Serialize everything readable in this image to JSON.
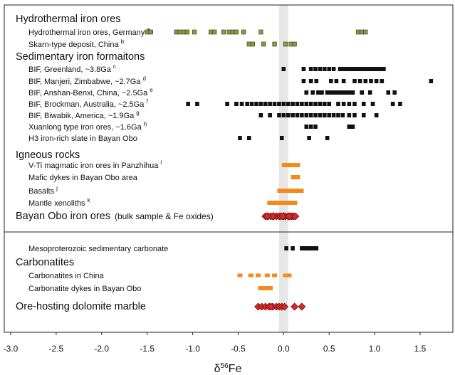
{
  "chart_data": {
    "type": "scatter",
    "xlabel": "δ56Fe",
    "xlim": [
      -3.1,
      1.8
    ],
    "xticks": [
      "-3.0",
      "-2.5",
      "-2.0",
      "-1.5",
      "-1.0",
      "-0.5",
      "0.0",
      "0.5",
      "1.0",
      "1.5"
    ],
    "reference_band": [
      -0.05,
      0.05
    ],
    "colors": {
      "hydrothermal": "#8a9a3a",
      "sedimentary": "#111111",
      "igneous": "#f28a1e",
      "bayan_obo": "#d42a2a"
    },
    "panels": [
      {
        "groups": [
          {
            "heading": "Hydrothermal iron ores",
            "rows": [
              {
                "label": "Hydrothermal iron ores, Germany",
                "sup": "a",
                "marker": "square",
                "color": "hydrothermal",
                "values": [
                  -1.5,
                  -1.46,
                  -1.18,
                  -1.14,
                  -1.1,
                  -1.06,
                  -0.98,
                  -0.8,
                  -0.76,
                  -0.66,
                  -0.6,
                  -0.56,
                  -0.52,
                  -0.44,
                  -0.25,
                  0.82,
                  0.86,
                  0.9
                ]
              },
              {
                "label": "Skarn-type deposit, China",
                "sup": "b",
                "marker": "square",
                "color": "hydrothermal",
                "values": [
                  -0.38,
                  -0.34,
                  -0.22,
                  -0.1,
                  0.02,
                  0.08,
                  0.12
                ]
              }
            ]
          },
          {
            "heading": "Sedimentary iron formaitons",
            "rows": [
              {
                "label": "BIF, Greenland, ~3.8Ga",
                "sup": "c",
                "marker": "square",
                "color": "sedimentary",
                "values": [
                  0.0,
                  0.22,
                  0.3,
                  0.35,
                  0.4,
                  0.45,
                  0.5,
                  0.55,
                  0.62,
                  0.66,
                  0.7,
                  0.74,
                  0.78,
                  0.82,
                  0.86,
                  0.9,
                  0.94,
                  0.98,
                  1.02,
                  1.06,
                  1.1
                ]
              },
              {
                "label": "BIF, Manjeri, Zimbabwe, ~2.7Ga",
                "sup": "d",
                "marker": "square",
                "color": "sedimentary",
                "values": [
                  0.22,
                  0.3,
                  0.36,
                  0.52,
                  0.58,
                  0.66,
                  0.78,
                  0.84,
                  0.9,
                  0.96,
                  1.02,
                  1.08,
                  1.62
                ]
              },
              {
                "label": "BIF, Anshan-Benxi, China, ~2.5Ga",
                "sup": "e",
                "marker": "square",
                "color": "sedimentary",
                "values": [
                  0.25,
                  0.32,
                  0.38,
                  0.42,
                  0.48,
                  0.52,
                  0.56,
                  0.6,
                  0.64,
                  0.68,
                  0.72,
                  0.76,
                  0.86,
                  0.95,
                  1.15,
                  1.22
                ]
              },
              {
                "label": "BIF, Brockman, Australia, ~2.5Ga",
                "sup": "f",
                "marker": "square",
                "color": "sedimentary",
                "values": [
                  -1.05,
                  -0.95,
                  -0.62,
                  -0.52,
                  -0.46,
                  -0.4,
                  -0.35,
                  -0.3,
                  -0.25,
                  -0.2,
                  -0.15,
                  -0.1,
                  -0.05,
                  0.0,
                  0.05,
                  0.1,
                  0.15,
                  0.2,
                  0.25,
                  0.3,
                  0.35,
                  0.4,
                  0.45,
                  0.5,
                  0.6,
                  0.66,
                  0.72,
                  0.78,
                  0.88,
                  0.98,
                  1.2,
                  1.28
                ]
              },
              {
                "label": "BIF, Biwabik, America, ~1.9Ga",
                "sup": "g",
                "marker": "square",
                "color": "sedimentary",
                "values": [
                  -0.25,
                  -0.15,
                  -0.05,
                  0.0,
                  0.05,
                  0.1,
                  0.15,
                  0.2,
                  0.25,
                  0.3,
                  0.35,
                  0.4,
                  0.45,
                  0.5,
                  0.55,
                  0.6,
                  0.65,
                  0.72,
                  0.78,
                  0.88,
                  1.02
                ]
              },
              {
                "label": "Xuanlong type iron ores, ~1.6Ga",
                "sup": "h",
                "marker": "square",
                "color": "sedimentary",
                "values": [
                  0.25,
                  0.3,
                  0.35,
                  0.72,
                  0.76
                ]
              },
              {
                "label": "H3 iron-rich slate in Bayan Obo",
                "sup": "",
                "marker": "square",
                "color": "sedimentary",
                "values": [
                  -0.48,
                  -0.38,
                  -0.02,
                  0.28,
                  0.48
                ]
              }
            ]
          },
          {
            "heading": "Igneous rocks",
            "rows": [
              {
                "label": "V-Ti magmatic iron ores in Panzhihua",
                "sup": "i",
                "marker": "bar",
                "color": "igneous",
                "range": [
                  -0.02,
                  0.18
                ]
              },
              {
                "label": "Mafic dykes in Bayan Obo area",
                "sup": "",
                "marker": "bar",
                "color": "igneous",
                "range": [
                  0.08,
                  0.18
                ]
              },
              {
                "label": "Basalts",
                "sup": "j",
                "marker": "bar",
                "color": "igneous",
                "range": [
                  -0.07,
                  0.22
                ]
              },
              {
                "label": "Mantle xenoliths",
                "sup": "k",
                "marker": "bar",
                "color": "igneous",
                "range": [
                  -0.18,
                  0.15
                ]
              }
            ]
          },
          {
            "heading": "",
            "rows": [
              {
                "label": "Bayan Obo iron ores",
                "sup": "",
                "note": "(bulk sample & Fe oxides)",
                "big": true,
                "marker": "diamond",
                "color": "bayan_obo",
                "values": [
                  -0.2,
                  -0.17,
                  -0.14,
                  -0.11,
                  -0.08,
                  -0.05,
                  -0.03,
                  0.0,
                  0.02,
                  0.05,
                  0.07,
                  0.09,
                  0.11,
                  0.13,
                  -0.12,
                  -0.01,
                  0.06,
                  -0.18
                ]
              }
            ]
          }
        ]
      },
      {
        "groups": [
          {
            "heading": "",
            "rows": [
              {
                "label": "Mesoproterozoic sedimentary carbonate",
                "sup": "",
                "marker": "square",
                "color": "sedimentary",
                "values": [
                  0.03,
                  0.1,
                  0.2,
                  0.24,
                  0.27,
                  0.3,
                  0.33,
                  0.36
                ]
              }
            ]
          },
          {
            "heading": "Carbonatites",
            "rows": [
              {
                "label": "Carbonatites in China",
                "sup": "",
                "marker": "dash",
                "color": "igneous",
                "values": [
                  -0.48,
                  -0.36,
                  -0.28,
                  -0.18,
                  -0.1,
                  0.02,
                  0.06
                ]
              },
              {
                "label": "Carbonatite dykes in Bayan Obo",
                "sup": "",
                "marker": "bar",
                "color": "igneous",
                "range": [
                  -0.28,
                  -0.12
                ]
              },
              {
                "label": "Ore-hosting dolomite marble",
                "sup": "",
                "big": true,
                "marker": "diamond",
                "color": "bayan_obo",
                "values": [
                  -0.28,
                  -0.24,
                  -0.2,
                  -0.16,
                  -0.12,
                  -0.08,
                  -0.05,
                  -0.02,
                  0.01,
                  -0.14,
                  0.12,
                  0.2
                ]
              }
            ]
          }
        ]
      }
    ]
  }
}
